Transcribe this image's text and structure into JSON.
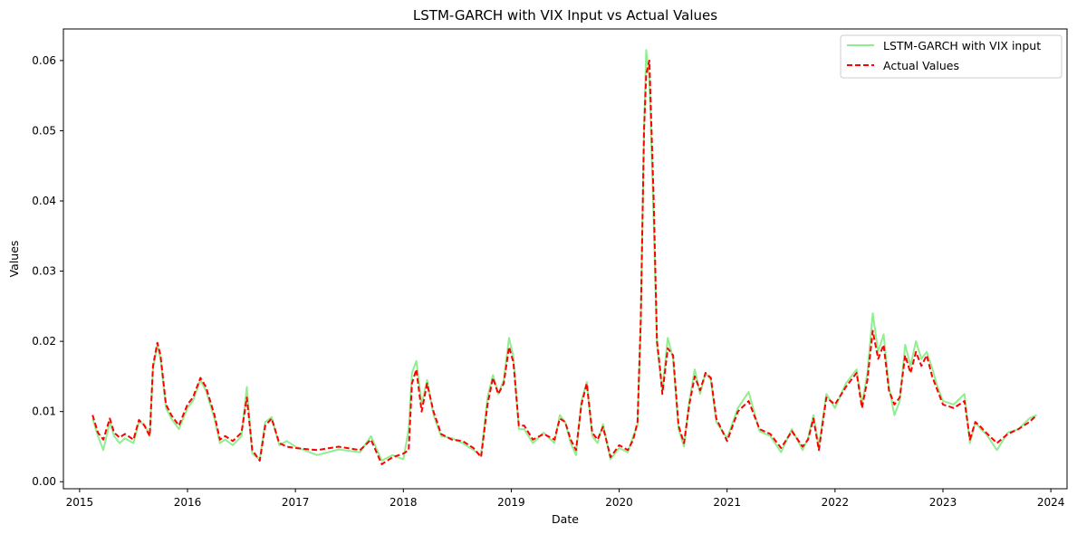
{
  "chart_data": {
    "type": "line",
    "title": "LSTM-GARCH with VIX Input vs Actual Values",
    "xlabel": "Date",
    "ylabel": "Values",
    "xlim": [
      2014.85,
      2024.15
    ],
    "ylim": [
      -0.001,
      0.0645
    ],
    "x_ticks": [
      2015,
      2016,
      2017,
      2018,
      2019,
      2020,
      2021,
      2022,
      2023,
      2024
    ],
    "x_tick_labels": [
      "2015",
      "2016",
      "2017",
      "2018",
      "2019",
      "2020",
      "2021",
      "2022",
      "2023",
      "2024"
    ],
    "y_ticks": [
      0.0,
      0.01,
      0.02,
      0.03,
      0.04,
      0.05,
      0.06
    ],
    "y_tick_labels": [
      "0.00",
      "0.01",
      "0.02",
      "0.03",
      "0.04",
      "0.05",
      "0.06"
    ],
    "legend_position": "top-right",
    "colors": {
      "predicted": "#90ee90",
      "actual": "#ff0000"
    },
    "series": [
      {
        "name": "LSTM-GARCH with VIX input",
        "key": "predicted",
        "style": "solid",
        "x": [
          2015.12,
          2015.17,
          2015.22,
          2015.28,
          2015.32,
          2015.37,
          2015.42,
          2015.5,
          2015.55,
          2015.6,
          2015.65,
          2015.68,
          2015.72,
          2015.75,
          2015.8,
          2015.85,
          2015.92,
          2016.0,
          2016.05,
          2016.12,
          2016.17,
          2016.25,
          2016.3,
          2016.35,
          2016.42,
          2016.5,
          2016.55,
          2016.6,
          2016.67,
          2016.72,
          2016.78,
          2016.85,
          2016.92,
          2017.0,
          2017.2,
          2017.4,
          2017.6,
          2017.7,
          2017.8,
          2017.9,
          2018.0,
          2018.05,
          2018.08,
          2018.12,
          2018.17,
          2018.22,
          2018.28,
          2018.35,
          2018.45,
          2018.55,
          2018.65,
          2018.72,
          2018.78,
          2018.83,
          2018.88,
          2018.93,
          2018.98,
          2019.02,
          2019.07,
          2019.12,
          2019.2,
          2019.3,
          2019.4,
          2019.45,
          2019.5,
          2019.55,
          2019.6,
          2019.65,
          2019.7,
          2019.75,
          2019.8,
          2019.85,
          2019.92,
          2020.0,
          2020.08,
          2020.13,
          2020.17,
          2020.2,
          2020.23,
          2020.25,
          2020.28,
          2020.32,
          2020.35,
          2020.38,
          2020.4,
          2020.45,
          2020.5,
          2020.55,
          2020.6,
          2020.65,
          2020.7,
          2020.75,
          2020.8,
          2020.85,
          2020.9,
          2021.0,
          2021.1,
          2021.2,
          2021.3,
          2021.4,
          2021.5,
          2021.6,
          2021.7,
          2021.75,
          2021.8,
          2021.85,
          2021.92,
          2022.0,
          2022.1,
          2022.2,
          2022.25,
          2022.3,
          2022.35,
          2022.4,
          2022.45,
          2022.5,
          2022.55,
          2022.6,
          2022.65,
          2022.7,
          2022.75,
          2022.8,
          2022.85,
          2022.9,
          2022.95,
          2023.0,
          2023.1,
          2023.2,
          2023.25,
          2023.3,
          2023.35,
          2023.4,
          2023.5,
          2023.6,
          2023.7,
          2023.8,
          2023.87
        ],
        "values": [
          0.009,
          0.0065,
          0.0045,
          0.0085,
          0.0065,
          0.0055,
          0.0062,
          0.0055,
          0.0085,
          0.0082,
          0.0065,
          0.016,
          0.0195,
          0.0175,
          0.0105,
          0.009,
          0.0075,
          0.0105,
          0.0115,
          0.0145,
          0.013,
          0.009,
          0.0055,
          0.006,
          0.0052,
          0.0065,
          0.0135,
          0.004,
          0.0032,
          0.0085,
          0.0092,
          0.0052,
          0.0058,
          0.005,
          0.0038,
          0.0046,
          0.0042,
          0.0065,
          0.003,
          0.0038,
          0.0032,
          0.0075,
          0.0155,
          0.0172,
          0.011,
          0.0145,
          0.0095,
          0.0065,
          0.0062,
          0.0055,
          0.0045,
          0.0038,
          0.012,
          0.0152,
          0.0125,
          0.0145,
          0.0205,
          0.0178,
          0.0075,
          0.0075,
          0.0055,
          0.007,
          0.0055,
          0.0095,
          0.0085,
          0.0055,
          0.0038,
          0.0115,
          0.0142,
          0.0065,
          0.0055,
          0.0082,
          0.0032,
          0.0048,
          0.0042,
          0.0065,
          0.008,
          0.0225,
          0.05,
          0.0615,
          0.0575,
          0.037,
          0.0195,
          0.0155,
          0.013,
          0.0205,
          0.0175,
          0.0075,
          0.005,
          0.0115,
          0.016,
          0.0125,
          0.0155,
          0.0145,
          0.0085,
          0.0062,
          0.0105,
          0.0128,
          0.0072,
          0.0065,
          0.0042,
          0.0075,
          0.0045,
          0.0062,
          0.0095,
          0.005,
          0.0125,
          0.0105,
          0.014,
          0.016,
          0.011,
          0.0155,
          0.024,
          0.0185,
          0.021,
          0.0135,
          0.0095,
          0.0115,
          0.0195,
          0.0165,
          0.02,
          0.0175,
          0.0185,
          0.0162,
          0.0135,
          0.0115,
          0.011,
          0.0125,
          0.0055,
          0.0085,
          0.0075,
          0.0068,
          0.0045,
          0.007,
          0.0075,
          0.009,
          0.0095
        ]
      },
      {
        "name": "Actual Values",
        "key": "actual",
        "style": "dashed",
        "x": [
          2015.12,
          2015.17,
          2015.22,
          2015.28,
          2015.32,
          2015.37,
          2015.42,
          2015.5,
          2015.55,
          2015.6,
          2015.65,
          2015.68,
          2015.72,
          2015.75,
          2015.8,
          2015.85,
          2015.92,
          2016.0,
          2016.05,
          2016.12,
          2016.17,
          2016.25,
          2016.3,
          2016.35,
          2016.42,
          2016.5,
          2016.55,
          2016.6,
          2016.67,
          2016.72,
          2016.78,
          2016.85,
          2016.92,
          2017.0,
          2017.2,
          2017.4,
          2017.6,
          2017.7,
          2017.8,
          2017.9,
          2018.0,
          2018.05,
          2018.08,
          2018.12,
          2018.17,
          2018.22,
          2018.28,
          2018.35,
          2018.45,
          2018.55,
          2018.65,
          2018.72,
          2018.78,
          2018.83,
          2018.88,
          2018.93,
          2018.98,
          2019.02,
          2019.07,
          2019.12,
          2019.2,
          2019.3,
          2019.4,
          2019.45,
          2019.5,
          2019.55,
          2019.6,
          2019.65,
          2019.7,
          2019.75,
          2019.8,
          2019.85,
          2019.92,
          2020.0,
          2020.08,
          2020.13,
          2020.17,
          2020.2,
          2020.23,
          2020.25,
          2020.28,
          2020.32,
          2020.35,
          2020.38,
          2020.4,
          2020.45,
          2020.5,
          2020.55,
          2020.6,
          2020.65,
          2020.7,
          2020.75,
          2020.8,
          2020.85,
          2020.9,
          2021.0,
          2021.1,
          2021.2,
          2021.3,
          2021.4,
          2021.5,
          2021.6,
          2021.7,
          2021.75,
          2021.8,
          2021.85,
          2021.92,
          2022.0,
          2022.1,
          2022.2,
          2022.25,
          2022.3,
          2022.35,
          2022.4,
          2022.45,
          2022.5,
          2022.55,
          2022.6,
          2022.65,
          2022.7,
          2022.75,
          2022.8,
          2022.85,
          2022.9,
          2022.95,
          2023.0,
          2023.1,
          2023.2,
          2023.25,
          2023.3,
          2023.35,
          2023.4,
          2023.5,
          2023.6,
          2023.7,
          2023.8,
          2023.87
        ],
        "values": [
          0.0095,
          0.007,
          0.006,
          0.009,
          0.007,
          0.0063,
          0.0068,
          0.006,
          0.0088,
          0.008,
          0.0065,
          0.0165,
          0.0198,
          0.018,
          0.011,
          0.0095,
          0.008,
          0.011,
          0.012,
          0.0148,
          0.0135,
          0.0095,
          0.006,
          0.0065,
          0.0058,
          0.007,
          0.012,
          0.0045,
          0.003,
          0.008,
          0.009,
          0.0055,
          0.005,
          0.0048,
          0.0045,
          0.005,
          0.0045,
          0.006,
          0.0025,
          0.0035,
          0.004,
          0.0045,
          0.014,
          0.016,
          0.01,
          0.014,
          0.01,
          0.0068,
          0.006,
          0.0058,
          0.0048,
          0.0035,
          0.011,
          0.0148,
          0.0125,
          0.014,
          0.0192,
          0.017,
          0.008,
          0.008,
          0.006,
          0.0068,
          0.006,
          0.009,
          0.0085,
          0.006,
          0.0045,
          0.011,
          0.014,
          0.007,
          0.006,
          0.0078,
          0.0035,
          0.0052,
          0.0045,
          0.006,
          0.0085,
          0.023,
          0.05,
          0.058,
          0.06,
          0.04,
          0.02,
          0.016,
          0.0125,
          0.019,
          0.018,
          0.008,
          0.0055,
          0.011,
          0.015,
          0.013,
          0.0155,
          0.0148,
          0.009,
          0.0058,
          0.01,
          0.0115,
          0.0075,
          0.0068,
          0.0048,
          0.0072,
          0.005,
          0.006,
          0.009,
          0.0045,
          0.012,
          0.011,
          0.0135,
          0.0155,
          0.0105,
          0.0145,
          0.0215,
          0.0175,
          0.0195,
          0.013,
          0.011,
          0.012,
          0.018,
          0.0155,
          0.0185,
          0.0165,
          0.018,
          0.015,
          0.013,
          0.011,
          0.0105,
          0.0115,
          0.006,
          0.0085,
          0.0078,
          0.007,
          0.0055,
          0.0068,
          0.0075,
          0.0085,
          0.0095
        ]
      }
    ]
  }
}
